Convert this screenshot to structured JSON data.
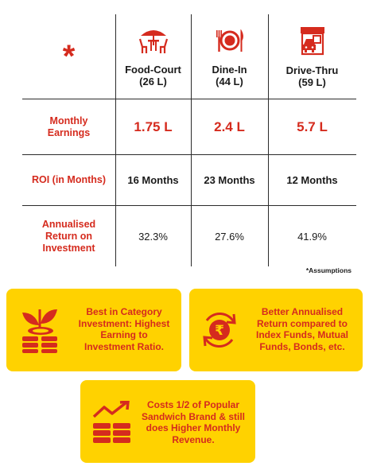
{
  "table": {
    "star": "*",
    "columns": [
      {
        "name": "Food-Court",
        "size": "(26 L)",
        "icon": "food-court-icon"
      },
      {
        "name": "Dine-In",
        "size": "(44 L)",
        "icon": "dine-in-icon"
      },
      {
        "name": "Drive-Thru",
        "size": "(59 L)",
        "icon": "drive-thru-icon"
      }
    ],
    "rows": [
      {
        "label": "Monthly Earnings",
        "values": [
          "1.75 L",
          "2.4 L",
          "5.7 L"
        ]
      },
      {
        "label": "ROI (in Months)",
        "values": [
          "16 Months",
          "23 Months",
          "12 Months"
        ]
      },
      {
        "label": "Annualised Return on Investment",
        "values": [
          "32.3%",
          "27.6%",
          "41.9%"
        ]
      }
    ],
    "footnote": "*Assumptions"
  },
  "cards": [
    {
      "text": "Best in Category Investment: Highest Earning to Investment Ratio.",
      "icon": "money-plant-icon"
    },
    {
      "text": "Better Annualised Return compared to Index Funds, Mutual Funds, Bonds, etc.",
      "icon": "rupee-cycle-icon"
    },
    {
      "text": "Costs 1/2 of Popular Sandwich Brand & still does Higher Monthly Revenue.",
      "icon": "growth-chart-icon"
    }
  ],
  "colors": {
    "accent": "#d52b1e",
    "card": "#ffd200",
    "text": "#1a1a1a"
  }
}
